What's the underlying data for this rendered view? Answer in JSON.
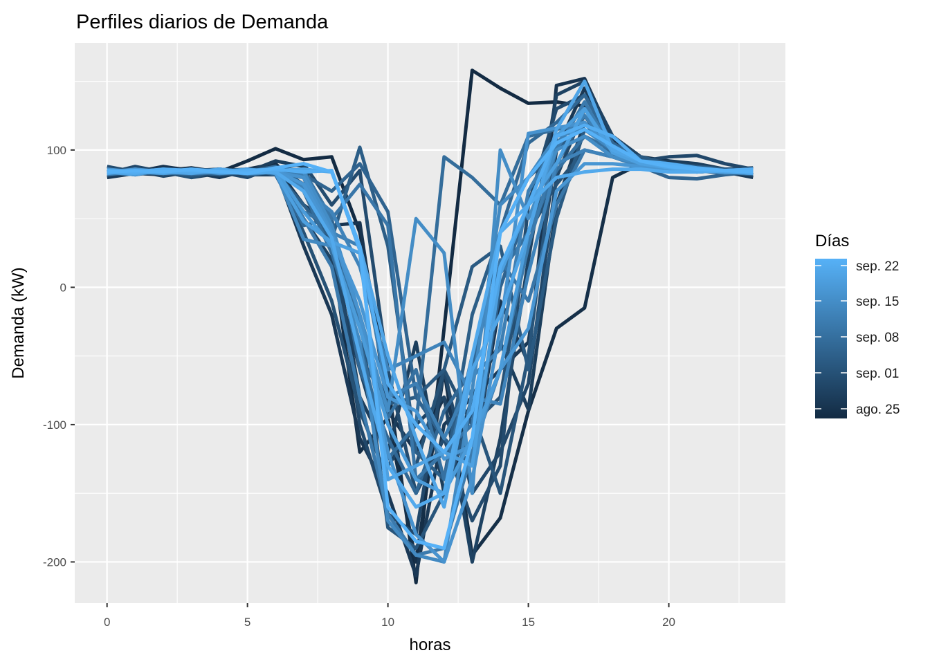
{
  "chart_data": {
    "type": "line",
    "title": "Perfiles diarios de Demanda",
    "xlabel": "horas",
    "ylabel": "Demanda (kW)",
    "xlim": [
      -1.15,
      24.15
    ],
    "ylim": [
      -230,
      178
    ],
    "x_ticks": [
      0,
      5,
      10,
      15,
      20
    ],
    "x_tick_labels": [
      "0",
      "5",
      "10",
      "15",
      "20"
    ],
    "y_ticks": [
      -200,
      -100,
      0,
      100
    ],
    "y_tick_labels": [
      "-200",
      "-100",
      "0",
      "100"
    ],
    "grid": true,
    "legend": {
      "title": "Días",
      "position": "right",
      "type": "colorbar",
      "labels": [
        "sep. 22",
        "sep. 15",
        "sep. 08",
        "sep. 01",
        "ago. 25"
      ],
      "color_low": "#132B43",
      "color_high": "#56B1F7"
    },
    "x": [
      0,
      1,
      2,
      3,
      4,
      5,
      6,
      7,
      8,
      9,
      10,
      11,
      12,
      13,
      14,
      15,
      16,
      17,
      18,
      19,
      20,
      21,
      22,
      23
    ],
    "series": [
      {
        "color_t": 0.0,
        "values": [
          84,
          86,
          85,
          87,
          84,
          92,
          101,
          93,
          95,
          40,
          -70,
          -215,
          -30,
          158,
          145,
          134,
          135,
          132,
          110,
          95,
          92,
          88,
          86,
          82
        ]
      },
      {
        "color_t": 0.03,
        "values": [
          82,
          84,
          83,
          85,
          82,
          86,
          90,
          70,
          30,
          -120,
          -95,
          -200,
          -60,
          -195,
          -168,
          -90,
          -30,
          -15,
          80,
          90,
          88,
          86,
          84,
          83
        ]
      },
      {
        "color_t": 0.07,
        "values": [
          86,
          84,
          88,
          85,
          86,
          84,
          88,
          60,
          45,
          47,
          -90,
          -120,
          -80,
          -130,
          -10,
          -55,
          147,
          152,
          108,
          95,
          90,
          87,
          86,
          85
        ]
      },
      {
        "color_t": 0.1,
        "values": [
          80,
          83,
          82,
          84,
          80,
          85,
          86,
          30,
          -20,
          -110,
          -150,
          -210,
          -100,
          -80,
          -60,
          -40,
          100,
          145,
          105,
          92,
          88,
          85,
          84,
          80
        ]
      },
      {
        "color_t": 0.14,
        "values": [
          85,
          82,
          86,
          80,
          83,
          84,
          92,
          88,
          40,
          -80,
          -120,
          -40,
          -150,
          -80,
          -40,
          -89,
          60,
          120,
          100,
          90,
          92,
          90,
          86,
          84
        ]
      },
      {
        "color_t": 0.17,
        "values": [
          82,
          85,
          81,
          84,
          86,
          82,
          82,
          50,
          20,
          -60,
          -130,
          -100,
          -80,
          -200,
          -110,
          20,
          140,
          150,
          110,
          95,
          88,
          87,
          85,
          82
        ]
      },
      {
        "color_t": 0.21,
        "values": [
          83,
          88,
          84,
          82,
          84,
          80,
          88,
          70,
          48,
          -100,
          -165,
          -180,
          -60,
          -150,
          -120,
          -70,
          80,
          130,
          100,
          92,
          95,
          96,
          90,
          86
        ]
      },
      {
        "color_t": 0.24,
        "values": [
          88,
          84,
          85,
          86,
          83,
          85,
          86,
          90,
          60,
          85,
          -60,
          -150,
          -110,
          -170,
          -130,
          60,
          130,
          140,
          105,
          94,
          90,
          88,
          86,
          87
        ]
      },
      {
        "color_t": 0.28,
        "values": [
          82,
          83,
          84,
          80,
          85,
          86,
          84,
          40,
          -10,
          -90,
          -140,
          -130,
          -60,
          -100,
          -80,
          40,
          75,
          100,
          95,
          90,
          86,
          84,
          85,
          83
        ]
      },
      {
        "color_t": 0.31,
        "values": [
          84,
          86,
          82,
          85,
          82,
          84,
          83,
          80,
          30,
          -20,
          -175,
          -190,
          -150,
          -90,
          -150,
          -50,
          110,
          130,
          100,
          92,
          88,
          86,
          84,
          84
        ]
      },
      {
        "color_t": 0.35,
        "values": [
          86,
          82,
          85,
          83,
          86,
          84,
          88,
          75,
          40,
          -50,
          -85,
          -80,
          -60,
          15,
          30,
          -60,
          50,
          115,
          100,
          95,
          90,
          88,
          86,
          85
        ]
      },
      {
        "color_t": 0.38,
        "values": [
          82,
          84,
          86,
          84,
          82,
          86,
          84,
          60,
          35,
          102,
          30,
          -120,
          -140,
          -20,
          40,
          80,
          100,
          120,
          100,
          90,
          88,
          85,
          84,
          82
        ]
      },
      {
        "color_t": 0.42,
        "values": [
          85,
          84,
          83,
          86,
          85,
          83,
          86,
          82,
          70,
          90,
          55,
          -80,
          -110,
          -130,
          0,
          60,
          90,
          125,
          96,
          88,
          80,
          79,
          82,
          84
        ]
      },
      {
        "color_t": 0.45,
        "values": [
          83,
          86,
          84,
          82,
          84,
          86,
          82,
          45,
          50,
          -60,
          -110,
          -150,
          -90,
          -60,
          40,
          105,
          120,
          140,
          105,
          92,
          87,
          85,
          83,
          84
        ]
      },
      {
        "color_t": 0.49,
        "values": [
          86,
          83,
          84,
          85,
          83,
          84,
          88,
          70,
          25,
          -40,
          -125,
          -100,
          95,
          80,
          60,
          110,
          115,
          120,
          95,
          88,
          90,
          86,
          84,
          86
        ]
      },
      {
        "color_t": 0.52,
        "values": [
          84,
          82,
          85,
          84,
          86,
          82,
          84,
          55,
          45,
          -30,
          -95,
          -60,
          -140,
          -50,
          10,
          40,
          85,
          110,
          100,
          90,
          86,
          84,
          85,
          83
        ]
      },
      {
        "color_t": 0.56,
        "values": [
          82,
          85,
          84,
          86,
          84,
          85,
          83,
          85,
          50,
          75,
          45,
          -140,
          -120,
          -100,
          20,
          -10,
          60,
          100,
          95,
          90,
          88,
          86,
          83,
          85
        ]
      },
      {
        "color_t": 0.59,
        "values": [
          85,
          84,
          86,
          83,
          85,
          84,
          86,
          50,
          15,
          -80,
          -165,
          -195,
          -190,
          -120,
          -60,
          30,
          100,
          135,
          100,
          92,
          88,
          86,
          85,
          84
        ]
      },
      {
        "color_t": 0.63,
        "values": [
          84,
          86,
          83,
          85,
          84,
          83,
          84,
          82,
          40,
          30,
          -80,
          -70,
          -110,
          -65,
          -45,
          70,
          105,
          125,
          100,
          90,
          86,
          85,
          84,
          83
        ]
      },
      {
        "color_t": 0.66,
        "values": [
          83,
          84,
          85,
          84,
          86,
          84,
          85,
          72,
          55,
          15,
          -60,
          -50,
          -40,
          -80,
          -85,
          10,
          90,
          100,
          95,
          88,
          86,
          85,
          84,
          85
        ]
      },
      {
        "color_t": 0.7,
        "values": [
          85,
          83,
          84,
          86,
          83,
          85,
          84,
          35,
          30,
          -40,
          -170,
          -195,
          -200,
          -75,
          60,
          80,
          110,
          115,
          100,
          92,
          86,
          85,
          84,
          84
        ]
      },
      {
        "color_t": 0.73,
        "values": [
          84,
          85,
          83,
          84,
          85,
          84,
          86,
          84,
          45,
          -20,
          -90,
          50,
          25,
          -150,
          100,
          50,
          100,
          110,
          95,
          90,
          88,
          86,
          84,
          84
        ]
      },
      {
        "color_t": 0.77,
        "values": [
          86,
          84,
          85,
          83,
          84,
          86,
          84,
          80,
          40,
          -20,
          -120,
          -180,
          -200,
          -140,
          -30,
          112,
          116,
          120,
          100,
          92,
          86,
          85,
          85,
          86
        ]
      },
      {
        "color_t": 0.8,
        "values": [
          83,
          86,
          84,
          85,
          83,
          84,
          85,
          75,
          38,
          -10,
          -80,
          -90,
          -125,
          -115,
          -60,
          -30,
          70,
          90,
          90,
          88,
          87,
          86,
          84,
          83
        ]
      },
      {
        "color_t": 0.84,
        "values": [
          84,
          82,
          86,
          84,
          85,
          83,
          86,
          55,
          30,
          -30,
          -100,
          -140,
          -150,
          -110,
          -60,
          40,
          110,
          130,
          100,
          90,
          88,
          86,
          85,
          84
        ]
      },
      {
        "color_t": 0.87,
        "values": [
          85,
          84,
          83,
          85,
          84,
          86,
          83,
          48,
          33,
          25,
          -140,
          -130,
          -120,
          -130,
          10,
          60,
          90,
          130,
          98,
          90,
          87,
          85,
          84,
          85
        ]
      },
      {
        "color_t": 0.91,
        "values": [
          83,
          85,
          84,
          83,
          86,
          84,
          85,
          86,
          84,
          30,
          -50,
          -110,
          -160,
          -60,
          -20,
          40,
          115,
          150,
          100,
          92,
          87,
          85,
          84,
          83
        ]
      },
      {
        "color_t": 0.94,
        "values": [
          84,
          83,
          85,
          84,
          85,
          83,
          84,
          70,
          36,
          -50,
          -130,
          -160,
          -150,
          -50,
          40,
          60,
          80,
          84,
          86,
          86,
          84,
          84,
          85,
          86
        ]
      },
      {
        "color_t": 0.97,
        "values": [
          85,
          84,
          86,
          85,
          84,
          85,
          86,
          84,
          85,
          27,
          -70,
          -100,
          -120,
          -90,
          15,
          60,
          110,
          118,
          110,
          92,
          90,
          87,
          85,
          86
        ]
      },
      {
        "color_t": 1.0,
        "values": [
          84,
          85,
          84,
          86,
          84,
          83,
          87,
          90,
          84,
          30,
          -160,
          -185,
          -190,
          -110,
          40,
          80,
          105,
          115,
          103,
          92,
          88,
          86,
          85,
          84
        ]
      }
    ]
  }
}
